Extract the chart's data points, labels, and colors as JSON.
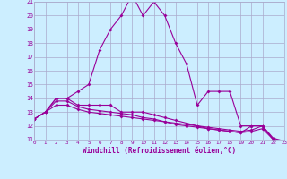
{
  "xlabel": "Windchill (Refroidissement éolien,°C)",
  "background_color": "#cceeff",
  "line_color": "#990099",
  "grid_color": "#aaaacc",
  "hours": [
    0,
    1,
    2,
    3,
    4,
    5,
    6,
    7,
    8,
    9,
    10,
    11,
    12,
    13,
    14,
    15,
    16,
    17,
    18,
    19,
    20,
    21,
    22,
    23
  ],
  "line1": [
    12.5,
    13.0,
    14.0,
    14.0,
    14.5,
    15.0,
    17.5,
    19.0,
    20.0,
    21.5,
    20.0,
    21.0,
    20.0,
    18.0,
    16.5,
    13.5,
    14.5,
    14.5,
    14.5,
    12.0,
    12.0,
    12.0,
    11.0,
    10.9
  ],
  "line2": [
    12.5,
    13.0,
    14.0,
    14.0,
    13.5,
    13.5,
    13.5,
    13.5,
    13.0,
    13.0,
    13.0,
    12.8,
    12.6,
    12.4,
    12.2,
    12.0,
    11.8,
    11.7,
    11.6,
    11.5,
    12.0,
    12.0,
    11.0,
    10.9
  ],
  "line3": [
    12.5,
    13.0,
    13.8,
    13.8,
    13.4,
    13.2,
    13.1,
    13.0,
    12.9,
    12.8,
    12.6,
    12.5,
    12.3,
    12.2,
    12.1,
    12.0,
    11.9,
    11.8,
    11.7,
    11.6,
    11.7,
    12.0,
    11.1,
    10.9
  ],
  "line4": [
    12.5,
    13.0,
    13.5,
    13.5,
    13.2,
    13.0,
    12.9,
    12.8,
    12.7,
    12.6,
    12.5,
    12.4,
    12.3,
    12.1,
    12.0,
    11.9,
    11.8,
    11.7,
    11.6,
    11.5,
    11.6,
    11.8,
    11.0,
    10.9
  ],
  "ylim": [
    11,
    21
  ],
  "xlim": [
    0,
    23
  ],
  "yticks": [
    11,
    12,
    13,
    14,
    15,
    16,
    17,
    18,
    19,
    20,
    21
  ],
  "xticks": [
    0,
    1,
    2,
    3,
    4,
    5,
    6,
    7,
    8,
    9,
    10,
    11,
    12,
    13,
    14,
    15,
    16,
    17,
    18,
    19,
    20,
    21,
    22,
    23
  ]
}
